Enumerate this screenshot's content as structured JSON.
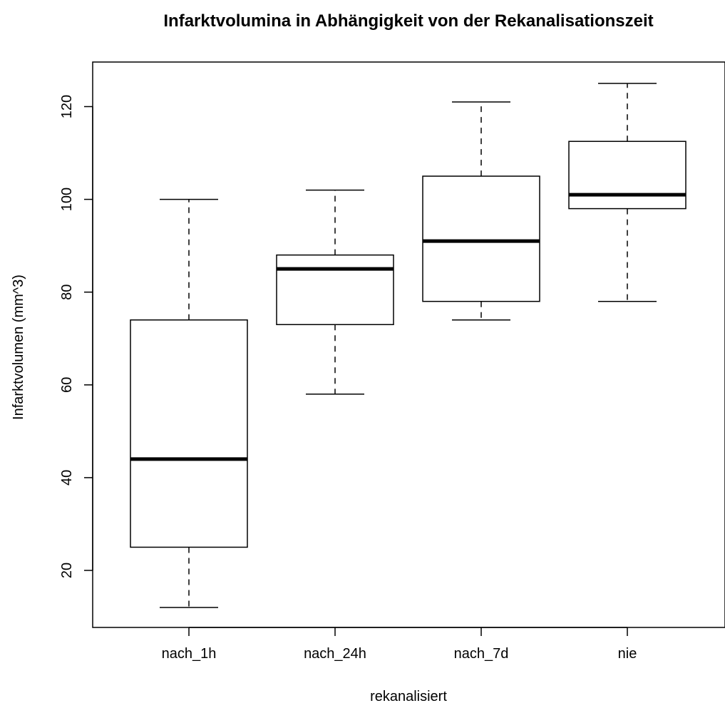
{
  "chart_data": {
    "type": "boxplot",
    "title": "Infarktvolumina in Abhängigkeit von der Rekanalisationszeit",
    "xlabel": "rekanalisiert",
    "ylabel": "Infarktvolumen (mm^3)",
    "categories": [
      "nach_1h",
      "nach_24h",
      "nach_7d",
      "nie"
    ],
    "y_ticks": [
      20,
      40,
      60,
      80,
      100,
      120
    ],
    "ylim": [
      8.5,
      129
    ],
    "grid": false,
    "legend": "none",
    "boxes": [
      {
        "category": "nach_1h",
        "whisker_low": 12,
        "q1": 25,
        "median": 44,
        "q3": 74,
        "whisker_high": 100
      },
      {
        "category": "nach_24h",
        "whisker_low": 58,
        "q1": 73,
        "median": 85,
        "q3": 88,
        "whisker_high": 102
      },
      {
        "category": "nach_7d",
        "whisker_low": 74,
        "q1": 78,
        "median": 91,
        "q3": 105,
        "whisker_high": 121
      },
      {
        "category": "nie",
        "whisker_low": 78,
        "q1": 98,
        "median": 101,
        "q3": 112.5,
        "whisker_high": 125
      }
    ]
  }
}
